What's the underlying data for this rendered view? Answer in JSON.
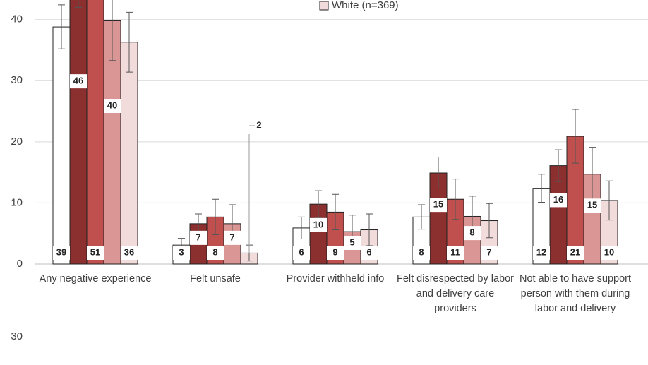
{
  "chart_data": [
    {
      "type": "bar",
      "categories": [
        "Any negative experience",
        "Felt unsafe",
        "Provider withheld info",
        "Felt disrespected by labor and delivery care providers",
        "Not able to have support person with them during labor and delivery"
      ],
      "series": [
        {
          "color": "#ffffff",
          "values": [
            38.8,
            3.1,
            5.9,
            7.7,
            12.4
          ],
          "value_labels": [
            "39",
            "3",
            "6",
            "8",
            "12"
          ],
          "errors": [
            3.6,
            1.1,
            1.8,
            2.0,
            2.3
          ]
        },
        {
          "color": "#8c2f2f",
          "values": [
            46,
            6.6,
            9.8,
            14.9,
            16.1
          ],
          "value_labels": [
            "46",
            "7",
            "10",
            "15",
            "16"
          ],
          "errors": [
            4,
            1.6,
            2.2,
            2.6,
            2.6
          ]
        },
        {
          "color": "#c0504d",
          "values": [
            51,
            7.7,
            8.5,
            10.6,
            20.9
          ],
          "value_labels": [
            "51",
            "8",
            "9",
            "11",
            "21"
          ],
          "errors": [
            4,
            2.9,
            2.9,
            3.3,
            4.4
          ]
        },
        {
          "color": "#da9694",
          "values": [
            39.8,
            6.6,
            5.3,
            7.8,
            14.7
          ],
          "value_labels": [
            "40",
            "7",
            "5",
            "8",
            "15"
          ],
          "errors": [
            6.5,
            3.1,
            2.7,
            3.3,
            4.4
          ]
        },
        {
          "name": "White (n=369)",
          "color": "#f2dcdb",
          "values": [
            36.3,
            1.8,
            5.6,
            7.1,
            10.4
          ],
          "value_labels": [
            "36",
            "2",
            "6",
            "7",
            "10"
          ],
          "errors": [
            4.9,
            1.3,
            2.6,
            2.8,
            3.2
          ]
        }
      ],
      "ylim": [
        0,
        43.2
      ],
      "yticks": [
        0,
        10,
        20,
        30,
        40
      ],
      "grid": true
    },
    {
      "type": "bar",
      "yticks": [
        30
      ]
    }
  ]
}
